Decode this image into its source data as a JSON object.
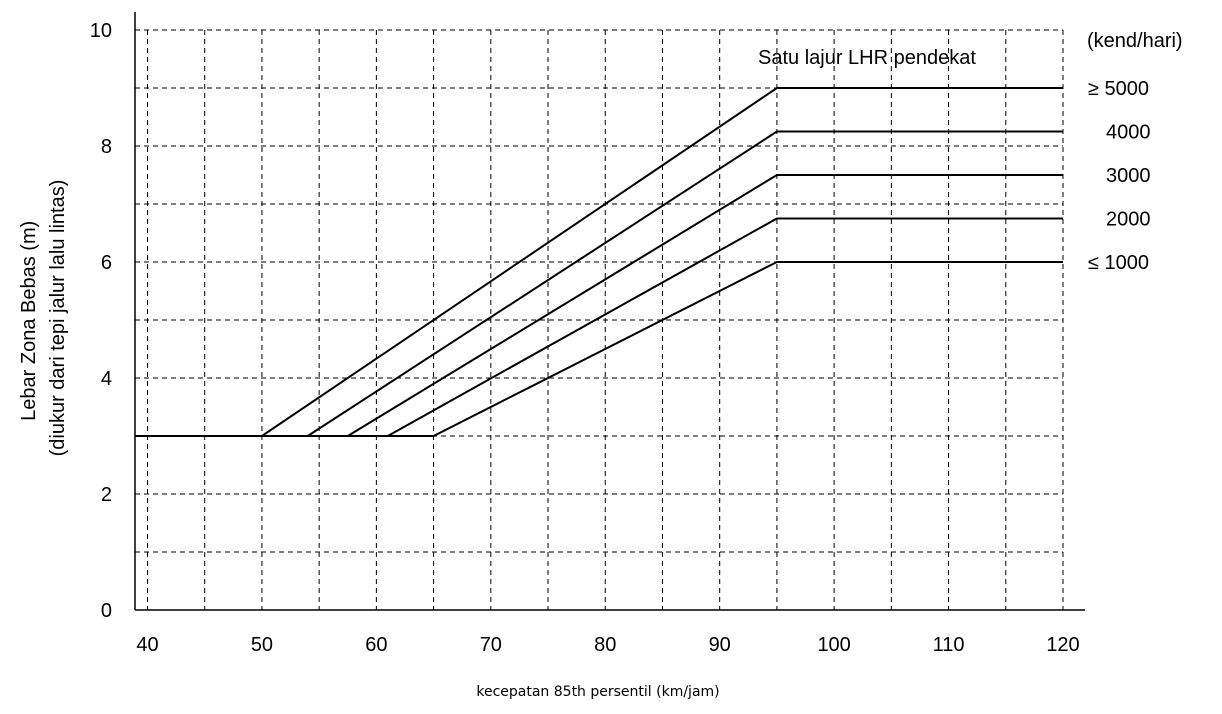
{
  "chart_data": {
    "type": "line",
    "title": "",
    "xlabel": "kecepatan 85th persentil (km/jam)",
    "ylabel_lines": [
      "Lebar Zona Bebas (m)",
      "(diukur dari tepi jalur lalu lintas)"
    ],
    "xlim": [
      38,
      121
    ],
    "ylim": [
      0,
      10
    ],
    "x_ticks": [
      40,
      50,
      60,
      70,
      80,
      90,
      100,
      110,
      120
    ],
    "x_tick_labels": [
      "40",
      "50",
      "60",
      "70",
      "80",
      "90",
      "100",
      "110",
      "120"
    ],
    "y_ticks": [
      0,
      2,
      4,
      6,
      8,
      10
    ],
    "y_tick_labels": [
      "0",
      "2",
      "4",
      "6",
      "8",
      "10"
    ],
    "grid": true,
    "grid_x": [
      40,
      45,
      50,
      55,
      60,
      65,
      70,
      75,
      80,
      85,
      90,
      95,
      100,
      105,
      110,
      115,
      120
    ],
    "grid_y": [
      1,
      2,
      3,
      4,
      5,
      6,
      7,
      8,
      9,
      10
    ],
    "legend_title": "Satu lajur LHR pendekat",
    "legend_unit": "(kend/hari)",
    "series": [
      {
        "name": "≥ 5000",
        "points": [
          [
            38,
            3
          ],
          [
            50,
            3
          ],
          [
            95,
            9
          ],
          [
            120,
            9
          ]
        ]
      },
      {
        "name": "4000",
        "points": [
          [
            38,
            3
          ],
          [
            54,
            3
          ],
          [
            95,
            8.25
          ],
          [
            120,
            8.25
          ]
        ]
      },
      {
        "name": "3000",
        "points": [
          [
            38,
            3
          ],
          [
            57.5,
            3
          ],
          [
            95,
            7.5
          ],
          [
            120,
            7.5
          ]
        ]
      },
      {
        "name": "2000",
        "points": [
          [
            38,
            3
          ],
          [
            61,
            3
          ],
          [
            95,
            6.75
          ],
          [
            120,
            6.75
          ]
        ]
      },
      {
        "name": "≤ 1000",
        "points": [
          [
            38,
            3
          ],
          [
            65,
            3
          ],
          [
            95,
            6
          ],
          [
            120,
            6
          ]
        ]
      }
    ]
  }
}
